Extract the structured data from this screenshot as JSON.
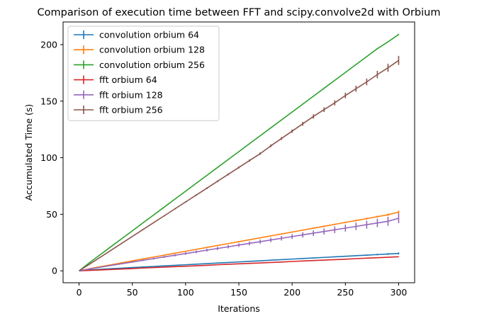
{
  "chart_data": {
    "type": "line",
    "title": "Comparison of execution time between FFT and scipy.convolve2d with Orbium",
    "xlabel": "Iterations",
    "ylabel": "Accumulated Time (s)",
    "xlim": [
      -15,
      315
    ],
    "ylim": [
      -10.5,
      220
    ],
    "xticks": [
      0,
      50,
      100,
      150,
      200,
      250,
      300
    ],
    "yticks": [
      0,
      50,
      100,
      150,
      200
    ],
    "grid": false,
    "legend_position": "upper-left",
    "x": [
      0,
      10,
      20,
      30,
      40,
      50,
      60,
      70,
      80,
      90,
      100,
      110,
      120,
      130,
      140,
      150,
      160,
      170,
      180,
      190,
      200,
      210,
      220,
      230,
      240,
      250,
      260,
      270,
      280,
      290,
      300
    ],
    "series": [
      {
        "name": "convolution orbium 64",
        "color": "#1f77b4",
        "values": [
          0,
          0.7,
          1.4,
          1.9,
          2.4,
          2.9,
          3.4,
          3.9,
          4.4,
          4.9,
          5.4,
          5.9,
          6.4,
          6.9,
          7.4,
          7.9,
          8.4,
          8.9,
          9.4,
          9.9,
          10.4,
          10.9,
          11.4,
          11.9,
          12.4,
          12.9,
          13.4,
          13.9,
          14.4,
          14.9,
          15.4
        ],
        "errors": [
          0,
          0.1,
          0.1,
          0.1,
          0.1,
          0.1,
          0.1,
          0.1,
          0.1,
          0.1,
          0.1,
          0.1,
          0.1,
          0.2,
          0.2,
          0.2,
          0.2,
          0.2,
          0.3,
          0.3,
          0.3,
          0.3,
          0.4,
          0.4,
          0.4,
          0.5,
          0.5,
          0.6,
          0.7,
          0.8,
          0.9
        ]
      },
      {
        "name": "convolution orbium 128",
        "color": "#ff7f0e",
        "values": [
          0,
          1.9,
          3.7,
          5.4,
          7.1,
          8.8,
          10.5,
          12.2,
          13.9,
          15.6,
          17.3,
          19.0,
          20.7,
          22.4,
          24.1,
          25.8,
          27.5,
          29.2,
          30.9,
          32.6,
          34.3,
          36.0,
          37.7,
          39.4,
          41.1,
          42.8,
          44.5,
          46.2,
          47.9,
          49.6,
          52.0
        ],
        "errors": [
          0,
          0.1,
          0.2,
          0.2,
          0.2,
          0.3,
          0.3,
          0.3,
          0.3,
          0.3,
          0.4,
          0.4,
          0.4,
          0.4,
          0.4,
          0.5,
          0.5,
          0.5,
          0.5,
          0.5,
          0.6,
          0.6,
          0.6,
          0.7,
          0.7,
          0.7,
          0.8,
          0.8,
          0.9,
          1.0,
          1.3
        ]
      },
      {
        "name": "convolution orbium 256",
        "color": "#2ca02c",
        "values": [
          0,
          7.4,
          14.4,
          21.4,
          28.4,
          35.4,
          42.4,
          49.4,
          56.4,
          63.4,
          70.4,
          77.4,
          84.4,
          91.4,
          98.4,
          105.4,
          112.4,
          119.4,
          126.4,
          133.4,
          140.4,
          147.4,
          154.4,
          161.4,
          168.4,
          175.4,
          182.4,
          189.4,
          196.4,
          202.4,
          209.0
        ],
        "errors": [
          0,
          0.1,
          0.1,
          0.1,
          0.1,
          0.1,
          0.1,
          0.1,
          0.1,
          0.1,
          0.1,
          0.1,
          0.1,
          0.1,
          0.1,
          0.1,
          0.1,
          0.1,
          0.1,
          0.1,
          0.1,
          0.1,
          0.2,
          0.2,
          0.2,
          0.2,
          0.3,
          0.3,
          0.3,
          0.4,
          0.5
        ]
      },
      {
        "name": "fft orbium 64",
        "color": "#d62728",
        "values": [
          0,
          0.4,
          0.8,
          1.2,
          1.6,
          2.0,
          2.5,
          2.9,
          3.3,
          3.7,
          4.1,
          4.5,
          4.9,
          5.4,
          5.8,
          6.2,
          6.6,
          7.0,
          7.4,
          7.8,
          8.3,
          8.7,
          9.1,
          9.5,
          9.9,
          10.3,
          10.8,
          11.2,
          11.6,
          12.0,
          12.5
        ],
        "errors": [
          0,
          0.1,
          0.1,
          0.1,
          0.1,
          0.1,
          0.1,
          0.1,
          0.1,
          0.1,
          0.1,
          0.1,
          0.1,
          0.1,
          0.1,
          0.1,
          0.1,
          0.1,
          0.1,
          0.1,
          0.1,
          0.1,
          0.1,
          0.1,
          0.1,
          0.1,
          0.1,
          0.1,
          0.1,
          0.2,
          0.2
        ]
      },
      {
        "name": "fft orbium 128",
        "color": "#9467bd",
        "values": [
          0,
          1.6,
          3.2,
          4.8,
          6.3,
          7.8,
          9.3,
          10.8,
          12.3,
          13.8,
          15.3,
          16.8,
          18.3,
          19.8,
          21.3,
          22.8,
          24.3,
          25.8,
          27.3,
          28.8,
          30.3,
          31.8,
          33.3,
          34.8,
          36.3,
          37.8,
          39.3,
          40.8,
          42.3,
          43.8,
          46.5
        ],
        "errors": [
          0,
          0.2,
          0.3,
          0.4,
          0.5,
          0.6,
          0.7,
          0.8,
          0.9,
          1.0,
          1.1,
          1.2,
          1.3,
          1.4,
          1.5,
          1.6,
          1.7,
          1.8,
          1.9,
          2.0,
          2.1,
          2.3,
          2.5,
          2.7,
          2.9,
          3.1,
          3.3,
          3.5,
          3.7,
          4.0,
          4.3
        ]
      },
      {
        "name": "fft orbium 256",
        "color": "#8c564b",
        "values": [
          0,
          6.0,
          12.1,
          18.2,
          24.3,
          30.4,
          36.5,
          42.6,
          48.7,
          54.8,
          60.9,
          67.0,
          73.1,
          79.2,
          85.3,
          91.4,
          97.5,
          103.6,
          110.5,
          117.0,
          123.5,
          130.0,
          136.5,
          142.5,
          148.5,
          155.0,
          161.0,
          167.0,
          173.5,
          179.5,
          186.0
        ],
        "errors": [
          0,
          0.2,
          0.3,
          0.3,
          0.4,
          0.4,
          0.5,
          0.5,
          0.6,
          0.6,
          0.7,
          0.7,
          0.8,
          0.8,
          0.9,
          0.9,
          1.0,
          1.1,
          1.2,
          1.3,
          1.5,
          1.7,
          1.9,
          2.1,
          2.3,
          2.5,
          2.7,
          3.0,
          3.3,
          3.6,
          4.0
        ]
      }
    ]
  }
}
